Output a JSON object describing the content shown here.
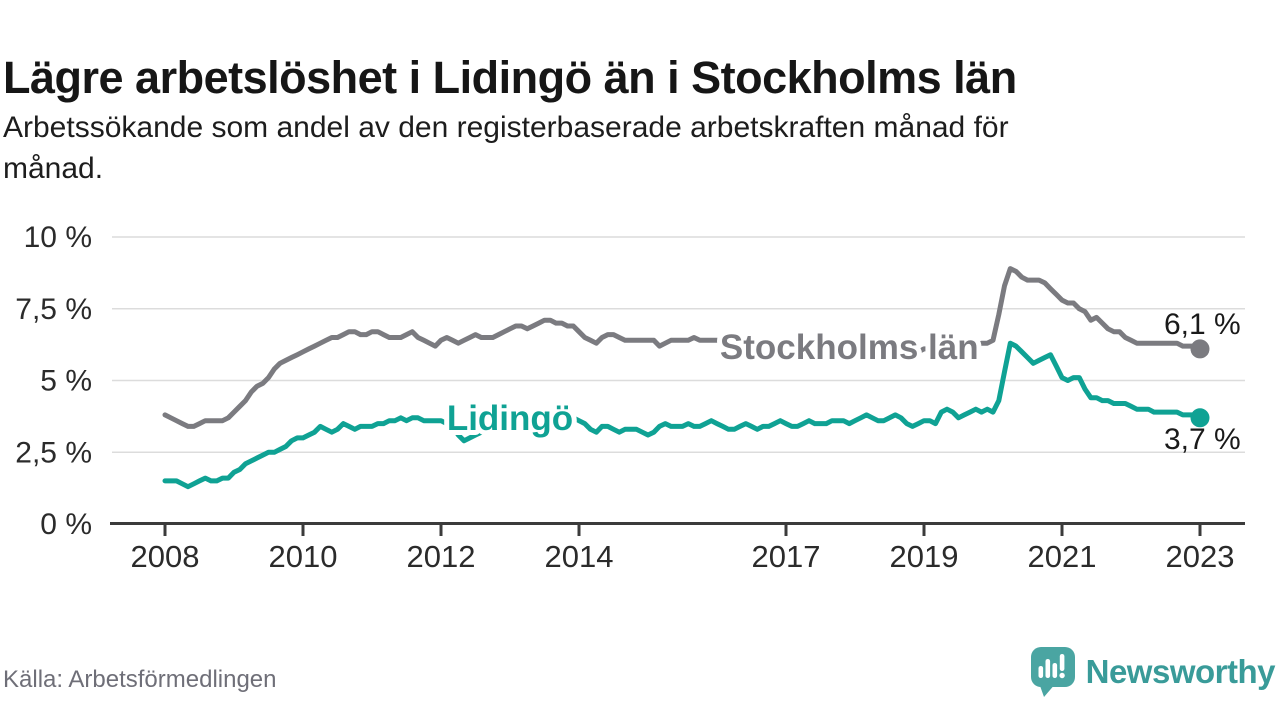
{
  "title": "Lägre arbetslöshet i Lidingö än i Stockholms län",
  "subtitle_lines": [
    "Arbetssökande som andel av den registerbaserade arbetskraften månad för",
    "månad."
  ],
  "source": "Källa: Arbetsförmedlingen",
  "brand": {
    "name": "Newsworthy",
    "wordmark_color": "#399b99",
    "icon_color": "#4aa5a2"
  },
  "colors": {
    "grid": "#dcdcdc",
    "axis": "#3b3b3b",
    "tick_text": "#2b2b2b",
    "value_label_text": "#1a1a1a"
  },
  "chart_data": {
    "type": "line",
    "unit": "%",
    "x_unit": "month",
    "x_range": [
      "2008-01",
      "2023-01"
    ],
    "points_per_year": 12,
    "x_ticks": [
      2008,
      2010,
      2012,
      2014,
      2017,
      2019,
      2021,
      2023
    ],
    "y_ticks": [
      0,
      2.5,
      5,
      7.5,
      10
    ],
    "y_tick_labels": [
      "0 %",
      "2,5 %",
      "5 %",
      "7,5 %",
      "10 %"
    ],
    "ylim": [
      0,
      10
    ],
    "grid": true,
    "legend_position": "inline-labels",
    "series": [
      {
        "name": "Stockholms län",
        "color": "#7b7b80",
        "end_value": 6.1,
        "end_label": "6,1 %",
        "end_label_offset": {
          "dx": -36,
          "dy": -15
        },
        "inline_label": {
          "index": 119,
          "value": 6.2
        },
        "values": [
          3.8,
          3.7,
          3.6,
          3.5,
          3.4,
          3.4,
          3.5,
          3.6,
          3.6,
          3.6,
          3.6,
          3.7,
          3.9,
          4.1,
          4.3,
          4.6,
          4.8,
          4.9,
          5.1,
          5.4,
          5.6,
          5.7,
          5.8,
          5.9,
          6.0,
          6.1,
          6.2,
          6.3,
          6.4,
          6.5,
          6.5,
          6.6,
          6.7,
          6.7,
          6.6,
          6.6,
          6.7,
          6.7,
          6.6,
          6.5,
          6.5,
          6.5,
          6.6,
          6.7,
          6.5,
          6.4,
          6.3,
          6.2,
          6.4,
          6.5,
          6.4,
          6.3,
          6.4,
          6.5,
          6.6,
          6.5,
          6.5,
          6.5,
          6.6,
          6.7,
          6.8,
          6.9,
          6.9,
          6.8,
          6.9,
          7.0,
          7.1,
          7.1,
          7.0,
          7.0,
          6.9,
          6.9,
          6.7,
          6.5,
          6.4,
          6.3,
          6.5,
          6.6,
          6.6,
          6.5,
          6.4,
          6.4,
          6.4,
          6.4,
          6.4,
          6.4,
          6.2,
          6.3,
          6.4,
          6.4,
          6.4,
          6.4,
          6.5,
          6.4,
          6.4,
          6.4,
          6.4,
          6.4,
          6.3,
          6.2,
          6.1,
          6.1,
          6.1,
          6.1,
          6.1,
          6.1,
          6.1,
          6.1,
          6.1,
          6.1,
          6.1,
          6.0,
          6.0,
          6.0,
          6.1,
          6.1,
          6.1,
          6.1,
          6.0,
          6.0,
          6.0,
          6.0,
          6.0,
          5.9,
          5.9,
          6.0,
          6.0,
          6.0,
          6.0,
          6.0,
          6.0,
          6.0,
          6.1,
          6.1,
          6.1,
          6.1,
          6.1,
          6.2,
          6.2,
          6.2,
          6.2,
          6.2,
          6.3,
          6.3,
          6.4,
          7.3,
          8.3,
          8.9,
          8.8,
          8.6,
          8.5,
          8.5,
          8.5,
          8.4,
          8.2,
          8.0,
          7.8,
          7.7,
          7.7,
          7.5,
          7.4,
          7.1,
          7.2,
          7.0,
          6.8,
          6.7,
          6.7,
          6.5,
          6.4,
          6.3,
          6.3,
          6.3,
          6.3,
          6.3,
          6.3,
          6.3,
          6.3,
          6.2,
          6.2,
          6.2,
          6.1
        ]
      },
      {
        "name": "Lidingö",
        "color": "#0fa294",
        "end_value": 3.7,
        "end_label": "3,7 %",
        "end_label_offset": {
          "dx": -36,
          "dy": 31
        },
        "inline_label": {
          "index": 60,
          "value": 3.73
        },
        "values": [
          1.5,
          1.5,
          1.5,
          1.4,
          1.3,
          1.4,
          1.5,
          1.6,
          1.5,
          1.5,
          1.6,
          1.6,
          1.8,
          1.9,
          2.1,
          2.2,
          2.3,
          2.4,
          2.5,
          2.5,
          2.6,
          2.7,
          2.9,
          3.0,
          3.0,
          3.1,
          3.2,
          3.4,
          3.3,
          3.2,
          3.3,
          3.5,
          3.4,
          3.3,
          3.4,
          3.4,
          3.4,
          3.5,
          3.5,
          3.6,
          3.6,
          3.7,
          3.6,
          3.7,
          3.7,
          3.6,
          3.6,
          3.6,
          3.6,
          3.5,
          3.4,
          3.1,
          2.9,
          3.0,
          3.1,
          3.2,
          3.3,
          3.4,
          3.4,
          3.5,
          3.5,
          3.6,
          3.6,
          3.6,
          3.7,
          3.7,
          3.7,
          3.8,
          3.7,
          3.8,
          3.8,
          3.7,
          3.6,
          3.5,
          3.3,
          3.2,
          3.4,
          3.4,
          3.3,
          3.2,
          3.3,
          3.3,
          3.3,
          3.2,
          3.1,
          3.2,
          3.4,
          3.5,
          3.4,
          3.4,
          3.4,
          3.5,
          3.4,
          3.4,
          3.5,
          3.6,
          3.5,
          3.4,
          3.3,
          3.3,
          3.4,
          3.5,
          3.4,
          3.3,
          3.4,
          3.4,
          3.5,
          3.6,
          3.5,
          3.4,
          3.4,
          3.5,
          3.6,
          3.5,
          3.5,
          3.5,
          3.6,
          3.6,
          3.6,
          3.5,
          3.6,
          3.7,
          3.8,
          3.7,
          3.6,
          3.6,
          3.7,
          3.8,
          3.7,
          3.5,
          3.4,
          3.5,
          3.6,
          3.6,
          3.5,
          3.9,
          4.0,
          3.9,
          3.7,
          3.8,
          3.9,
          4.0,
          3.9,
          4.0,
          3.9,
          4.3,
          5.3,
          6.3,
          6.2,
          6.0,
          5.8,
          5.6,
          5.7,
          5.8,
          5.9,
          5.5,
          5.1,
          5.0,
          5.1,
          5.1,
          4.7,
          4.4,
          4.4,
          4.3,
          4.3,
          4.2,
          4.2,
          4.2,
          4.1,
          4.0,
          4.0,
          4.0,
          3.9,
          3.9,
          3.9,
          3.9,
          3.9,
          3.8,
          3.8,
          3.8,
          3.7
        ]
      }
    ]
  }
}
